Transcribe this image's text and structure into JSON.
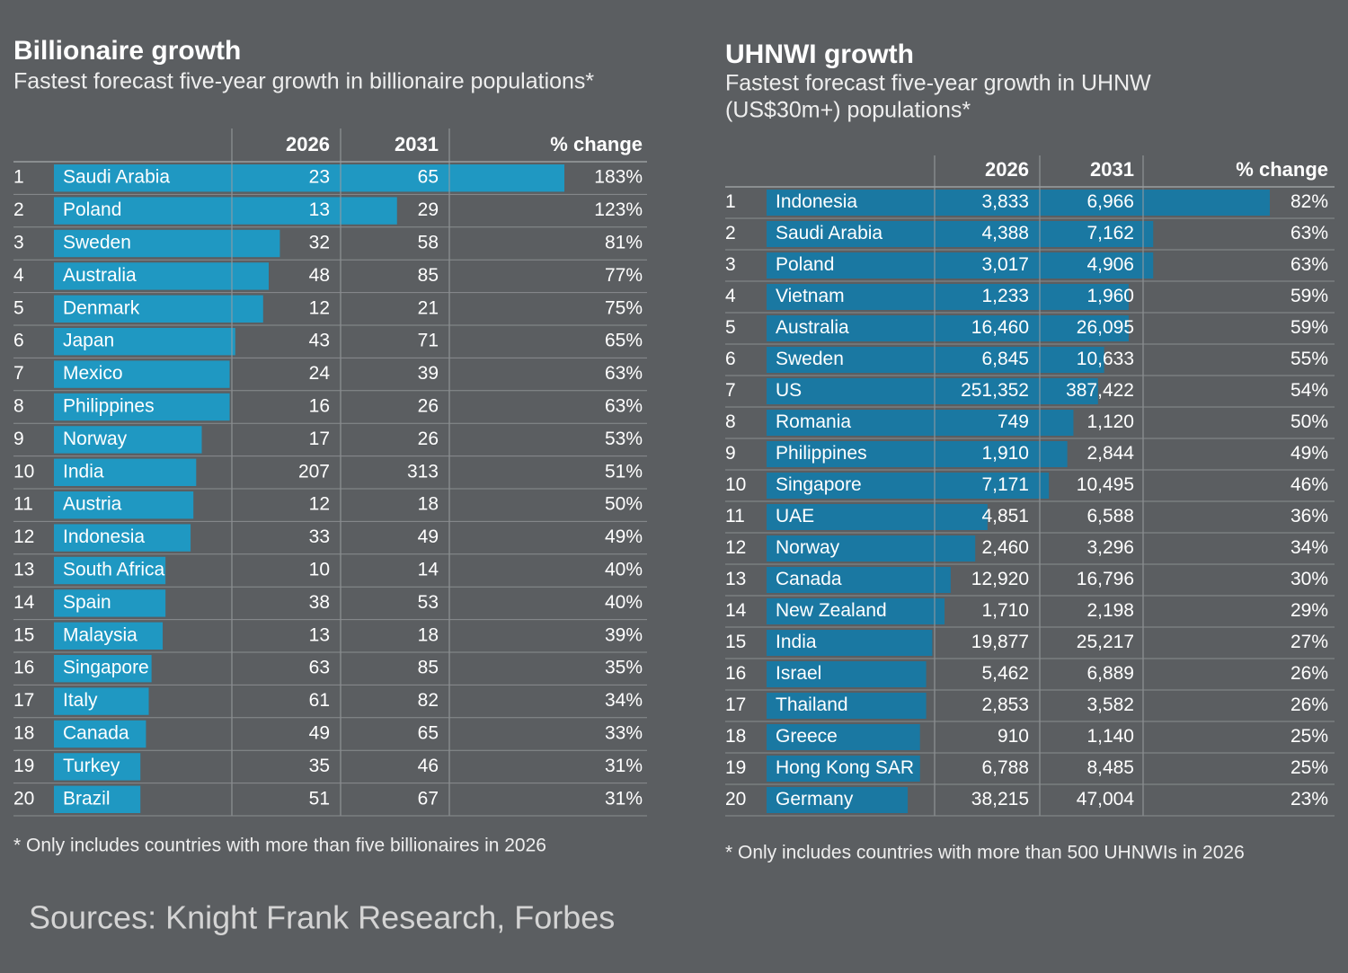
{
  "chart_data": [
    {
      "type": "bar",
      "title": "Billionaire growth",
      "subtitle": [
        "Fastest forecast five-year growth in billionaire populations*"
      ],
      "columns": [
        "2026",
        "2031",
        "% change"
      ],
      "ranks": [
        1,
        2,
        3,
        4,
        5,
        6,
        7,
        8,
        9,
        10,
        11,
        12,
        13,
        14,
        15,
        16,
        17,
        18,
        19,
        20
      ],
      "categories": [
        "Saudi Arabia",
        "Poland",
        "Sweden",
        "Australia",
        "Denmark",
        "Japan",
        "Mexico",
        "Philippines",
        "Norway",
        "India",
        "Austria",
        "Indonesia",
        "South Africa",
        "Spain",
        "Malaysia",
        "Singapore",
        "Italy",
        "Canada",
        "Turkey",
        "Brazil"
      ],
      "col2026": [
        23,
        13,
        32,
        48,
        12,
        43,
        24,
        16,
        17,
        207,
        12,
        33,
        10,
        38,
        13,
        63,
        61,
        49,
        35,
        51
      ],
      "col2031": [
        65,
        29,
        58,
        85,
        21,
        71,
        39,
        26,
        26,
        313,
        18,
        49,
        14,
        53,
        18,
        85,
        82,
        65,
        46,
        67
      ],
      "values": [
        183,
        123,
        81,
        77,
        75,
        65,
        63,
        63,
        53,
        51,
        50,
        49,
        40,
        40,
        39,
        35,
        34,
        33,
        31,
        31
      ],
      "value_labels": [
        "183%",
        "123%",
        "81%",
        "77%",
        "75%",
        "65%",
        "63%",
        "63%",
        "53%",
        "51%",
        "50%",
        "49%",
        "40%",
        "40%",
        "39%",
        "35%",
        "34%",
        "33%",
        "31%",
        "31%"
      ],
      "color": "#1f98c2",
      "note": "* Only includes countries with more than five billionaires in 2026"
    },
    {
      "type": "bar",
      "title": "UHNWI growth",
      "subtitle": [
        "Fastest forecast five-year growth in UHNW",
        "(US$30m+) populations*"
      ],
      "columns": [
        "2026",
        "2031",
        "% change"
      ],
      "ranks": [
        1,
        2,
        3,
        4,
        5,
        6,
        7,
        8,
        9,
        10,
        11,
        12,
        13,
        14,
        15,
        16,
        17,
        18,
        19,
        20
      ],
      "categories": [
        "Indonesia",
        "Saudi Arabia",
        "Poland",
        "Vietnam",
        "Australia",
        "Sweden",
        "US",
        "Romania",
        "Philippines",
        "Singapore",
        "UAE",
        "Norway",
        "Canada",
        "New Zealand",
        "India",
        "Israel",
        "Thailand",
        "Greece",
        "Hong Kong SAR",
        "Germany"
      ],
      "col2026": [
        "3,833",
        "4,388",
        "3,017",
        "1,233",
        "16,460",
        "6,845",
        "251,352",
        "749",
        "1,910",
        "7,171",
        "4,851",
        "2,460",
        "12,920",
        "1,710",
        "19,877",
        "5,462",
        "2,853",
        "910",
        "6,788",
        "38,215"
      ],
      "col2031": [
        "6,966",
        "7,162",
        "4,906",
        "1,960",
        "26,095",
        "10,633",
        "387,422",
        "1,120",
        "2,844",
        "10,495",
        "6,588",
        "3,296",
        "16,796",
        "2,198",
        "25,217",
        "6,889",
        "3,582",
        "1,140",
        "8,485",
        "47,004"
      ],
      "values": [
        82,
        63,
        63,
        59,
        59,
        55,
        54,
        50,
        49,
        46,
        36,
        34,
        30,
        29,
        27,
        26,
        26,
        25,
        25,
        23
      ],
      "value_labels": [
        "82%",
        "63%",
        "63%",
        "59%",
        "59%",
        "55%",
        "54%",
        "50%",
        "49%",
        "46%",
        "36%",
        "34%",
        "30%",
        "29%",
        "27%",
        "26%",
        "26%",
        "25%",
        "25%",
        "23%"
      ],
      "color": "#1a78a2",
      "note": "* Only includes countries with more than 500 UHNWIs in 2026"
    }
  ],
  "source": "Sources: Knight Frank Research, Forbes"
}
